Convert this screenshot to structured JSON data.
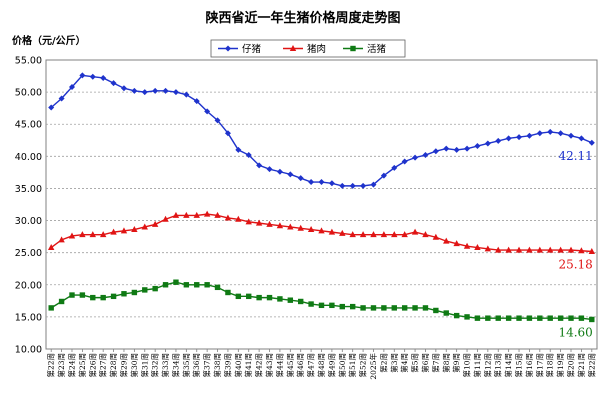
{
  "chart_data": {
    "type": "line",
    "title": "陕西省近一年生猪价格周度走势图",
    "ylabel": "价格（元/公斤）",
    "xlabel": "",
    "ylim": [
      10,
      55
    ],
    "yticks": [
      "10.00",
      "15.00",
      "20.00",
      "25.00",
      "30.00",
      "35.00",
      "40.00",
      "45.00",
      "50.00",
      "55.00"
    ],
    "grid": true,
    "legend_position": "top-center",
    "categories": [
      "第22周",
      "第23周",
      "第24周",
      "第25周",
      "第26周",
      "第27周",
      "第28周",
      "第29周",
      "第30周",
      "第31周",
      "第32周",
      "第33周",
      "第34周",
      "第35周",
      "第36周",
      "第37周",
      "第38周",
      "第39周",
      "第40周",
      "第41周",
      "第42周",
      "第43周",
      "第44周",
      "第45周",
      "第46周",
      "第47周",
      "第48周",
      "第49周",
      "第50周",
      "第51周",
      "第52周",
      "2025年",
      "第2周",
      "第3周",
      "第4周",
      "第5周",
      "第6周",
      "第7周",
      "第8周",
      "第9周",
      "第10周",
      "第11周",
      "第12周",
      "第13周",
      "第14周",
      "第15周",
      "第16周",
      "第17周",
      "第18周",
      "第19周",
      "第20周",
      "第21周",
      "第22周"
    ],
    "series": [
      {
        "name": "仔猪",
        "color": "#1f33cc",
        "marker": "diamond",
        "values": [
          47.6,
          49.0,
          50.8,
          52.6,
          52.4,
          52.2,
          51.4,
          50.6,
          50.2,
          50.0,
          50.2,
          50.2,
          50.0,
          49.6,
          48.6,
          47.0,
          45.6,
          43.6,
          41.0,
          40.2,
          38.6,
          38.0,
          37.6,
          37.2,
          36.6,
          36.0,
          36.0,
          35.8,
          35.4,
          35.4,
          35.4,
          35.6,
          37.0,
          38.2,
          39.2,
          39.8,
          40.2,
          40.8,
          41.2,
          41.0,
          41.2,
          41.6,
          42.0,
          42.4,
          42.8,
          43.0,
          43.2,
          43.6,
          43.8,
          43.6,
          43.2,
          42.8,
          42.11
        ],
        "end_label": "42.11"
      },
      {
        "name": "猪肉",
        "color": "#e01414",
        "marker": "triangle",
        "values": [
          25.8,
          27.0,
          27.6,
          27.8,
          27.8,
          27.8,
          28.2,
          28.4,
          28.6,
          29.0,
          29.4,
          30.2,
          30.8,
          30.8,
          30.8,
          31.0,
          30.8,
          30.4,
          30.2,
          29.8,
          29.6,
          29.4,
          29.2,
          29.0,
          28.8,
          28.6,
          28.4,
          28.2,
          28.0,
          27.8,
          27.8,
          27.8,
          27.8,
          27.8,
          27.8,
          28.2,
          27.8,
          27.4,
          26.8,
          26.4,
          26.0,
          25.8,
          25.6,
          25.4,
          25.4,
          25.4,
          25.4,
          25.4,
          25.4,
          25.4,
          25.4,
          25.3,
          25.18
        ],
        "end_label": "25.18"
      },
      {
        "name": "活猪",
        "color": "#0f7a14",
        "marker": "square",
        "values": [
          16.4,
          17.4,
          18.4,
          18.4,
          18.0,
          18.0,
          18.2,
          18.6,
          18.8,
          19.2,
          19.4,
          20.0,
          20.4,
          20.0,
          20.0,
          20.0,
          19.6,
          18.8,
          18.2,
          18.2,
          18.0,
          18.0,
          17.8,
          17.6,
          17.4,
          17.0,
          16.8,
          16.8,
          16.6,
          16.6,
          16.4,
          16.4,
          16.4,
          16.4,
          16.4,
          16.4,
          16.4,
          16.0,
          15.6,
          15.2,
          15.0,
          14.8,
          14.8,
          14.8,
          14.8,
          14.8,
          14.8,
          14.8,
          14.8,
          14.8,
          14.8,
          14.8,
          14.6
        ],
        "end_label": "14.60"
      }
    ]
  }
}
